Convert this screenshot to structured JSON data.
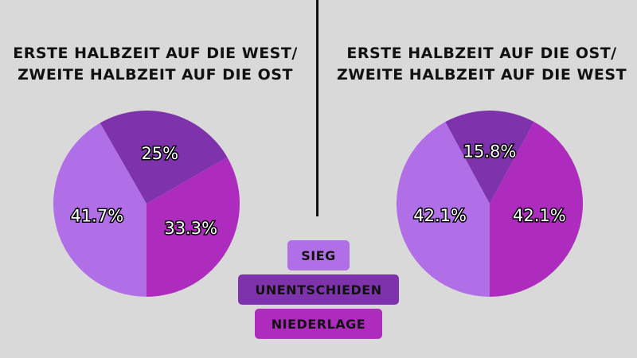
{
  "chart_data": [
    {
      "type": "pie",
      "title_lines": [
        "ERSTE HALBZEIT AUF DIE WEST/",
        "ZWEITE HALBZEIT AUF DIE OST"
      ],
      "categories": [
        "SIEG",
        "UNENTSCHIEDEN",
        "NIEDERLAGE"
      ],
      "values": [
        41.7,
        25,
        33.3
      ],
      "labels": [
        "41.7%",
        "25%",
        "33.3%"
      ]
    },
    {
      "type": "pie",
      "title_lines": [
        "ERSTE HALBZEIT AUF DIE OST/",
        "ZWEITE HALBZEIT AUF DIE WEST"
      ],
      "categories": [
        "SIEG",
        "UNENTSCHIEDEN",
        "NIEDERLAGE"
      ],
      "values": [
        42.1,
        15.8,
        42.1
      ],
      "labels": [
        "42.1%",
        "15.8%",
        "42.1%"
      ]
    }
  ],
  "legend": [
    {
      "label": "SIEG",
      "color": "#b06fe6"
    },
    {
      "label": "UNENTSCHIEDEN",
      "color": "#7e33ac"
    },
    {
      "label": "NIEDERLAGE",
      "color": "#ad2bbd"
    }
  ],
  "colors": {
    "background": "#d9d9d9",
    "sieg": "#b06fe6",
    "unentschieden": "#7e33ac",
    "niederlage": "#ad2bbd"
  }
}
